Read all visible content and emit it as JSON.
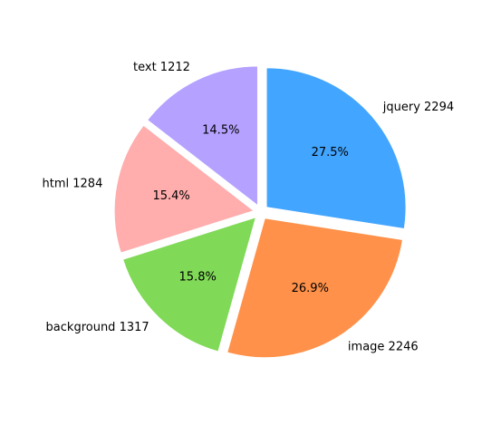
{
  "chart_data": {
    "type": "pie",
    "title": "",
    "slices": [
      {
        "label": "jquery 2294",
        "value": 2294,
        "percent_label": "27.5%",
        "color": "#42a5ff",
        "explode": true
      },
      {
        "label": "image 2246",
        "value": 2246,
        "percent_label": "26.9%",
        "color": "#ff914a",
        "explode": true
      },
      {
        "label": "background 1317",
        "value": 1317,
        "percent_label": "15.8%",
        "color": "#80d957",
        "explode": true
      },
      {
        "label": "html 1284",
        "value": 1284,
        "percent_label": "15.4%",
        "color": "#ffadad",
        "explode": true
      },
      {
        "label": "text 1212",
        "value": 1212,
        "percent_label": "14.5%",
        "color": "#b5a1ff",
        "explode": true
      }
    ],
    "start_angle_deg": 90,
    "direction": "clockwise",
    "legend": false
  }
}
